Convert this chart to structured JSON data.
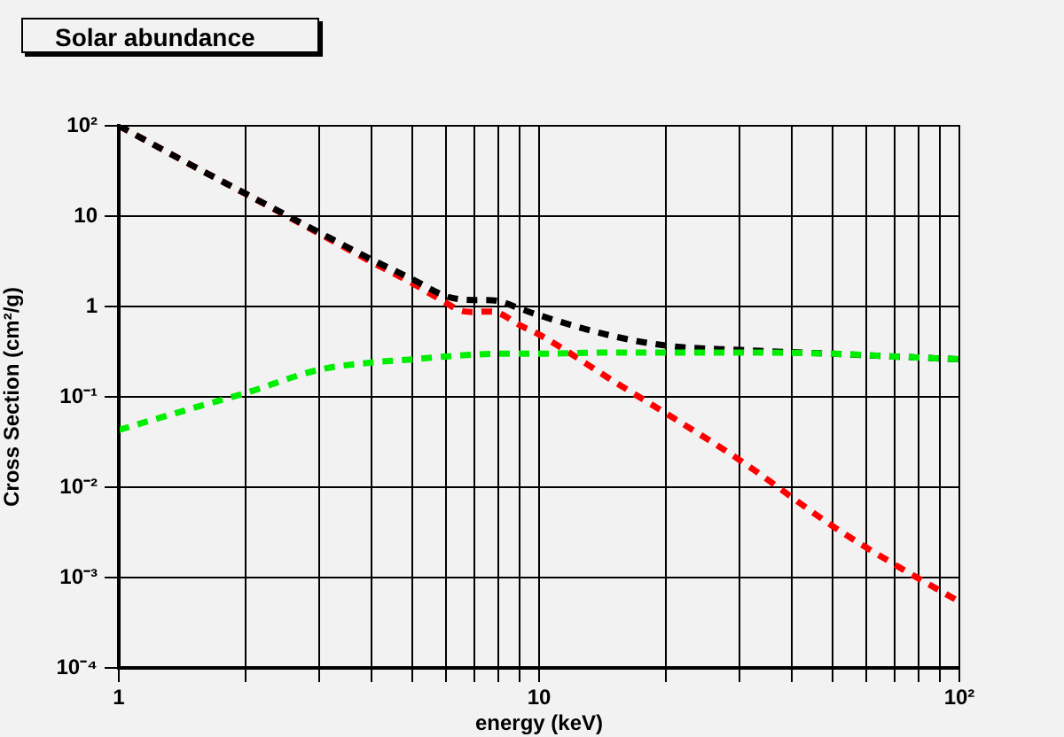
{
  "chart_data": {
    "type": "line",
    "title": "Solar abundance",
    "xlabel": "energy (keV)",
    "ylabel": "Cross Section (cm²/g)",
    "log": "xy",
    "grid": true,
    "line_style": "dashed",
    "marker": "none",
    "xlim": [
      1,
      100
    ],
    "ylim": [
      0.0001,
      100
    ],
    "xticks": [
      {
        "value": 1,
        "label": "1"
      },
      {
        "value": 2,
        "label": null
      },
      {
        "value": 3,
        "label": null
      },
      {
        "value": 4,
        "label": null
      },
      {
        "value": 5,
        "label": null
      },
      {
        "value": 6,
        "label": null
      },
      {
        "value": 7,
        "label": null
      },
      {
        "value": 8,
        "label": null
      },
      {
        "value": 9,
        "label": null
      },
      {
        "value": 10,
        "label": "10"
      },
      {
        "value": 20,
        "label": null
      },
      {
        "value": 30,
        "label": null
      },
      {
        "value": 40,
        "label": null
      },
      {
        "value": 50,
        "label": null
      },
      {
        "value": 60,
        "label": null
      },
      {
        "value": 70,
        "label": null
      },
      {
        "value": 80,
        "label": null
      },
      {
        "value": 90,
        "label": null
      },
      {
        "value": 100,
        "label": "10²"
      }
    ],
    "yticks": [
      {
        "value": 0.0001,
        "label": "10⁻⁴"
      },
      {
        "value": 0.001,
        "label": "10⁻³"
      },
      {
        "value": 0.01,
        "label": "10⁻²"
      },
      {
        "value": 0.1,
        "label": "10⁻¹"
      },
      {
        "value": 1,
        "label": "1"
      },
      {
        "value": 10,
        "label": "10"
      },
      {
        "value": 100,
        "label": "10²"
      }
    ],
    "series": [
      {
        "color": "#00ee00",
        "x": [
          1,
          1.5,
          2,
          3,
          4,
          5,
          6,
          8,
          10,
          15,
          20,
          30,
          50,
          70,
          100
        ],
        "values": [
          0.043,
          0.075,
          0.11,
          0.2,
          0.24,
          0.26,
          0.28,
          0.3,
          0.3,
          0.31,
          0.31,
          0.31,
          0.3,
          0.28,
          0.26
        ]
      },
      {
        "color": "#000000",
        "x": [
          1,
          1.5,
          2,
          3,
          4,
          5,
          6,
          6.5,
          7,
          7.5,
          8,
          9,
          10,
          15,
          20,
          30,
          50,
          70,
          100
        ],
        "values": [
          100,
          36,
          17.8,
          6.6,
          3.3,
          2.0,
          1.3,
          1.2,
          1.18,
          1.18,
          1.15,
          0.95,
          0.8,
          0.47,
          0.37,
          0.33,
          0.3,
          0.28,
          0.26
        ]
      },
      {
        "color": "#ff0000",
        "x": [
          1,
          1.5,
          2,
          3,
          4,
          5,
          6,
          6.5,
          7,
          7.5,
          8,
          9,
          10,
          15,
          20,
          30,
          50,
          70,
          100
        ],
        "values": [
          100,
          36,
          17.7,
          6.4,
          3.1,
          1.8,
          1.1,
          0.9,
          0.87,
          0.88,
          0.85,
          0.62,
          0.49,
          0.15,
          0.066,
          0.02,
          0.0037,
          0.0014,
          0.00054
        ]
      }
    ]
  }
}
